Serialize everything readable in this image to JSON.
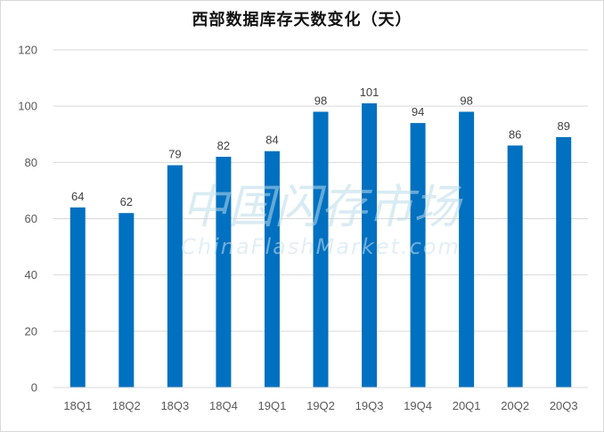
{
  "chart_data": {
    "type": "bar",
    "title": "西部数据库存天数变化（天）",
    "categories": [
      "18Q1",
      "18Q2",
      "18Q3",
      "18Q4",
      "19Q1",
      "19Q2",
      "19Q3",
      "19Q4",
      "20Q1",
      "20Q2",
      "20Q3"
    ],
    "series": [
      {
        "values": [
          64,
          62,
          79,
          82,
          84,
          98,
          101,
          94,
          98,
          86,
          89
        ]
      }
    ],
    "y_ticks": [
      "0",
      "20",
      "40",
      "60",
      "80",
      "100",
      "120"
    ],
    "ylim": [
      0,
      120
    ],
    "xlabel": "",
    "ylabel": "",
    "grid": true,
    "legend": "none",
    "bar_color": "#0070c0",
    "data_labels": true
  },
  "watermark": {
    "cn_text": "中国闪存市场",
    "en_text": "ChinaFlashMarket.com"
  }
}
